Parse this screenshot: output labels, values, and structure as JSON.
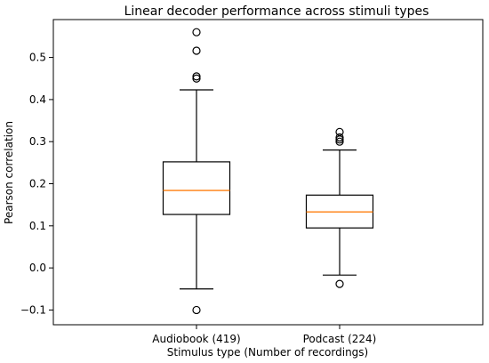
{
  "chart_data": {
    "type": "box",
    "title": "Linear decoder performance across stimuli types",
    "xlabel": "Stimulus type (Number of recordings)",
    "ylabel": "Pearson correlation",
    "ylim": [
      -0.135,
      0.59
    ],
    "yticks": [
      -0.1,
      0.0,
      0.1,
      0.2,
      0.3,
      0.4,
      0.5
    ],
    "ytick_labels": [
      "−0.1",
      "0.0",
      "0.1",
      "0.2",
      "0.3",
      "0.4",
      "0.5"
    ],
    "grid": false,
    "legend": "none",
    "categories": [
      "Audiobook (419)",
      "Podcast (224)"
    ],
    "boxes": [
      {
        "label": "Audiobook (419)",
        "whisker_low": -0.05,
        "q1": 0.127,
        "median": 0.184,
        "q3": 0.252,
        "whisker_high": 0.423,
        "outliers": [
          -0.1,
          0.45,
          0.455,
          0.516,
          0.56
        ]
      },
      {
        "label": "Podcast (224)",
        "whisker_low": -0.017,
        "q1": 0.095,
        "median": 0.133,
        "q3": 0.173,
        "whisker_high": 0.28,
        "outliers": [
          -0.038,
          0.3,
          0.305,
          0.31,
          0.323
        ]
      }
    ],
    "colors": {
      "median": "#ff7f0e",
      "box": "#000000",
      "axes": "#000000"
    }
  }
}
